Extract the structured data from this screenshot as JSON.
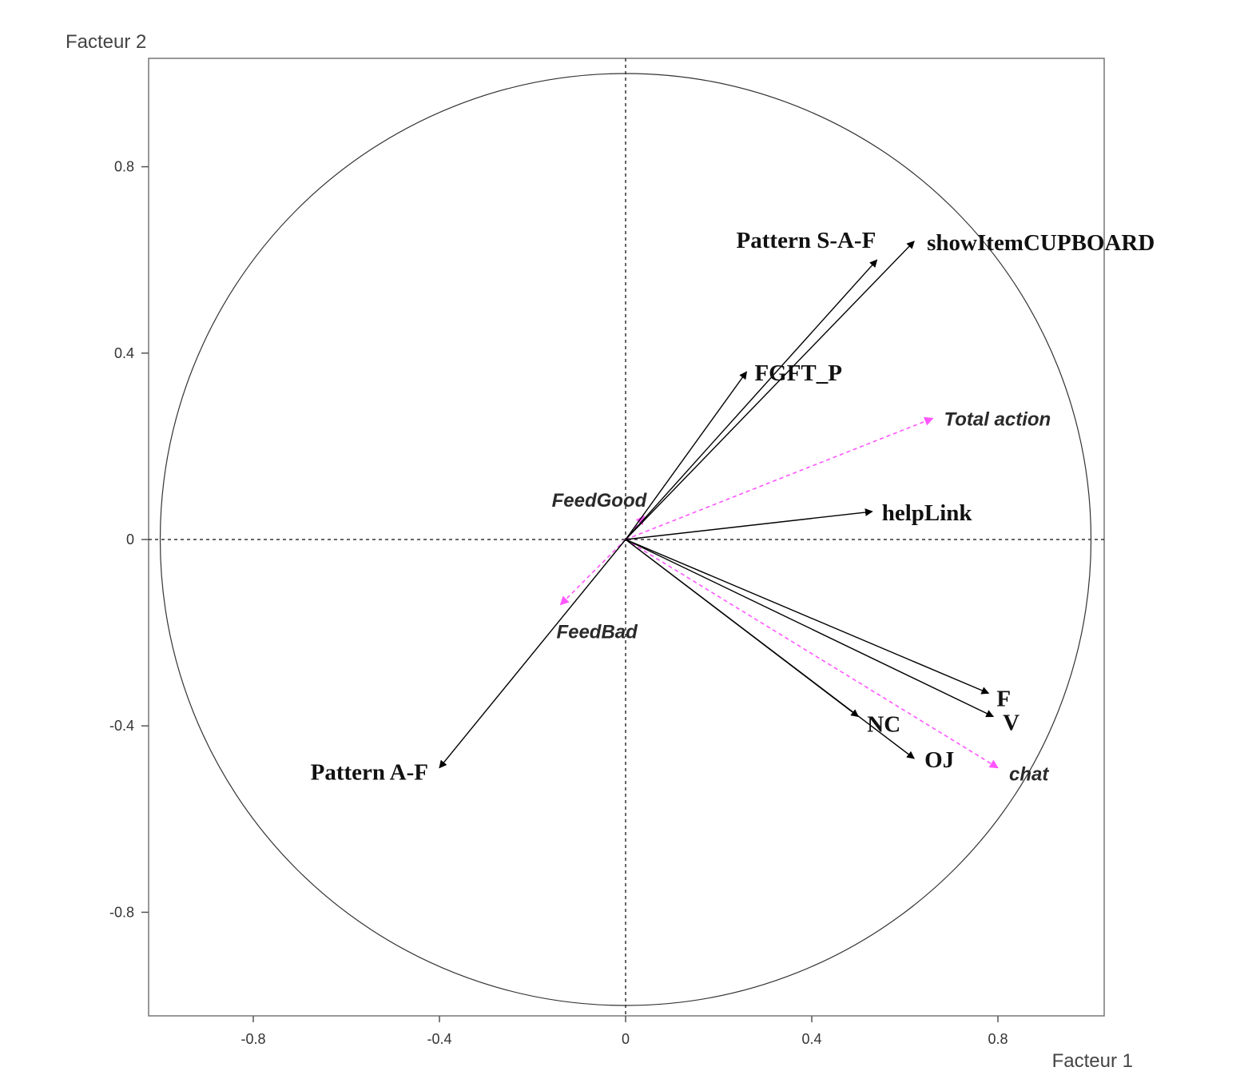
{
  "chart_data": {
    "type": "scatter",
    "subtype": "correlation-circle",
    "xlabel": "Facteur 1",
    "ylabel": "Facteur 2",
    "xlim": [
      -1.03,
      1.03
    ],
    "ylim": [
      -1.03,
      1.03
    ],
    "xticks": [
      -0.8,
      -0.4,
      0,
      0.4,
      0.8
    ],
    "yticks": [
      0.8,
      0.4,
      0,
      -0.4,
      -0.8
    ],
    "tick_labels_x": [
      "-0.8",
      "-0.4",
      "0",
      "0.4",
      "0.8"
    ],
    "tick_labels_y": [
      "0.8",
      "0.4",
      "0",
      "-0.4",
      "-0.8"
    ],
    "unit_circle": true,
    "axes_lines": "dashed",
    "series": [
      {
        "style": "active",
        "color": "#000000",
        "line": "solid",
        "points": [
          {
            "label": "Pattern S-A-F",
            "x": 0.54,
            "y": 0.6
          },
          {
            "label": "showItemCUPBOARD",
            "x": 0.62,
            "y": 0.64
          },
          {
            "label": "FGFT_P",
            "x": 0.26,
            "y": 0.36
          },
          {
            "label": "helpLink",
            "x": 0.53,
            "y": 0.06
          },
          {
            "label": "F",
            "x": 0.78,
            "y": -0.33
          },
          {
            "label": "V",
            "x": 0.79,
            "y": -0.38
          },
          {
            "label": "NC",
            "x": 0.5,
            "y": -0.38
          },
          {
            "label": "OJ",
            "x": 0.62,
            "y": -0.47
          },
          {
            "label": "Pattern A-F",
            "x": -0.4,
            "y": -0.49
          }
        ]
      },
      {
        "style": "supplementary",
        "color": "#ff55ff",
        "line": "dashed",
        "points": [
          {
            "label": "Total action",
            "x": 0.66,
            "y": 0.26
          },
          {
            "label": "FeedGood",
            "x": 0.04,
            "y": 0.05
          },
          {
            "label": "FeedBad",
            "x": -0.14,
            "y": -0.14
          },
          {
            "label": "chat",
            "x": 0.8,
            "y": -0.49
          }
        ]
      }
    ]
  }
}
